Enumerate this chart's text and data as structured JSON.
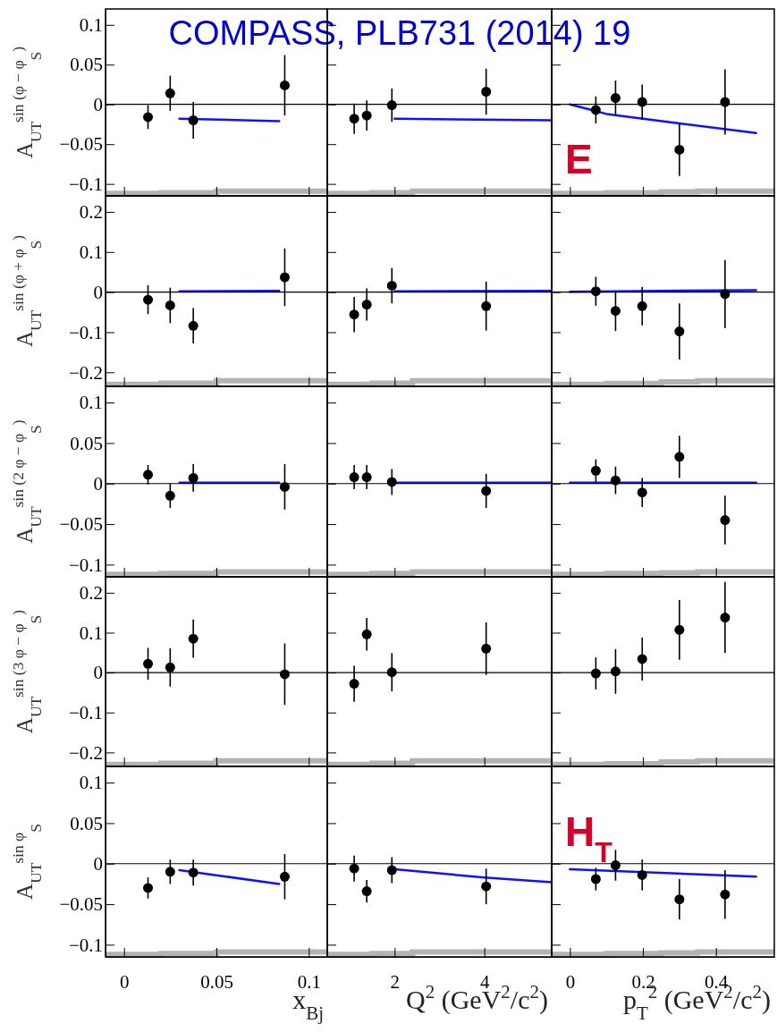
{
  "chart_data": [
    {
      "type": "scatter",
      "title": "COMPASS, PLB731 (2014) 19",
      "ylabel": "A$_{UT}$$^{sin (φ − φ}$$_{S}$$^{)}$",
      "xlim": [
        -0.01,
        0.11
      ],
      "xticks": [
        0,
        0.05,
        0.1
      ],
      "ylim": [
        -0.115,
        0.12
      ],
      "yticks": [
        {
          "value": -0.1,
          "label": "−0.1"
        },
        {
          "value": -0.05,
          "label": "−0.05"
        },
        0,
        0.05,
        0.1
      ],
      "tick_labels": "y",
      "marker": "circle",
      "ref_lines": [
        {
          "axis": "y",
          "value": 0,
          "color": "#000000"
        }
      ],
      "series": [
        {
          "type": "step",
          "color": "#b3b3b3",
          "marker": "none",
          "x": [
            -0.01,
            0.02,
            0.05,
            0.11
          ],
          "values": [
            -0.112,
            -0.111,
            -0.109,
            -0.109
          ]
        },
        {
          "type": "line",
          "color": "#1010ff",
          "marker": "none",
          "x": [
            0.03,
            0.084
          ],
          "values": [
            -0.018,
            -0.021
          ]
        },
        {
          "type": "scatter",
          "color": "#000000",
          "x": [
            0.013,
            0.025,
            0.0375,
            0.087
          ],
          "values": [
            -0.016,
            0.014,
            -0.02,
            0.024
          ],
          "errors": [
            0.015,
            0.022,
            0.023,
            0.038
          ]
        }
      ]
    },
    {
      "type": "scatter",
      "xlim": [
        0.5,
        5.5
      ],
      "xticks": [
        2,
        4
      ],
      "ylim": [
        -0.115,
        0.12
      ],
      "yticks": [
        -0.1,
        -0.05,
        0,
        0.05,
        0.1
      ],
      "tick_labels": false,
      "marker": "circle",
      "ref_lines": [
        {
          "axis": "y",
          "value": 0,
          "color": "#000000"
        }
      ],
      "series": [
        {
          "type": "step",
          "color": "#b3b3b3",
          "marker": "none",
          "x": [
            0.5,
            1.5,
            2.4,
            5.5
          ],
          "values": [
            -0.112,
            -0.111,
            -0.109,
            -0.109
          ]
        },
        {
          "type": "line",
          "color": "#1010ff",
          "marker": "none",
          "x": [
            2,
            5.5
          ],
          "values": [
            -0.018,
            -0.02
          ]
        },
        {
          "type": "scatter",
          "color": "#000000",
          "x": [
            1.1,
            1.38,
            1.94,
            4.04
          ],
          "values": [
            -0.018,
            -0.014,
            -0.001,
            0.016
          ],
          "errors": [
            0.019,
            0.019,
            0.021,
            0.029
          ]
        }
      ]
    },
    {
      "type": "scatter",
      "annotations": [
        "E"
      ],
      "xlim": [
        -0.05,
        0.56
      ],
      "xticks": [
        0,
        0.2,
        0.4
      ],
      "ylim": [
        -0.115,
        0.12
      ],
      "yticks": [
        -0.1,
        -0.05,
        0,
        0.05,
        0.1
      ],
      "tick_labels": false,
      "marker": "circle",
      "ref_lines": [
        {
          "axis": "y",
          "value": 0,
          "color": "#000000"
        }
      ],
      "series": [
        {
          "type": "step",
          "color": "#b3b3b3",
          "marker": "none",
          "x": [
            -0.05,
            0.1,
            0.25,
            0.35,
            0.56
          ],
          "values": [
            -0.112,
            -0.111,
            -0.11,
            -0.109,
            -0.109
          ]
        },
        {
          "type": "line",
          "color": "#1010ff",
          "marker": "none",
          "x": [
            0,
            0.05,
            0.1,
            0.3,
            0.51
          ],
          "values": [
            0,
            -0.006,
            -0.012,
            -0.024,
            -0.036
          ]
        },
        {
          "type": "scatter",
          "color": "#000000",
          "x": [
            0.071,
            0.125,
            0.198,
            0.3,
            0.425
          ],
          "values": [
            -0.007,
            0.008,
            0.003,
            -0.057,
            0.003
          ],
          "errors": [
            0.017,
            0.022,
            0.022,
            0.033,
            0.041
          ]
        }
      ]
    },
    {
      "type": "scatter",
      "ylabel": "A$_{UT}$$^{sin (φ + φ}$$_{S}$$^{)}$",
      "xlim": [
        -0.01,
        0.11
      ],
      "xticks": [
        0,
        0.05,
        0.1
      ],
      "ylim": [
        -0.235,
        0.24
      ],
      "yticks": [
        {
          "value": -0.2,
          "label": "−0.2"
        },
        {
          "value": -0.1,
          "label": "−0.1"
        },
        0,
        0.1,
        0.2
      ],
      "tick_labels": "y",
      "marker": "circle",
      "ref_lines": [
        {
          "axis": "y",
          "value": 0,
          "color": "#000000"
        }
      ],
      "series": [
        {
          "type": "step",
          "color": "#b3b3b3",
          "marker": "none",
          "x": [
            -0.01,
            0.02,
            0.05,
            0.11
          ],
          "values": [
            -0.23,
            -0.227,
            -0.221,
            -0.221
          ]
        },
        {
          "type": "line",
          "color": "#1010ff",
          "marker": "none",
          "x": [
            0.03,
            0.084
          ],
          "values": [
            0.002,
            0.003
          ]
        },
        {
          "type": "scatter",
          "color": "#000000",
          "x": [
            0.013,
            0.025,
            0.0375,
            0.087
          ],
          "values": [
            -0.019,
            -0.033,
            -0.084,
            0.037
          ],
          "errors": [
            0.036,
            0.044,
            0.044,
            0.072
          ]
        }
      ]
    },
    {
      "type": "scatter",
      "xlim": [
        0.5,
        5.5
      ],
      "xticks": [
        2,
        4
      ],
      "ylim": [
        -0.235,
        0.24
      ],
      "yticks": [
        -0.2,
        -0.1,
        0,
        0.1,
        0.2
      ],
      "tick_labels": false,
      "marker": "circle",
      "ref_lines": [
        {
          "axis": "y",
          "value": 0,
          "color": "#000000"
        }
      ],
      "series": [
        {
          "type": "step",
          "color": "#b3b3b3",
          "marker": "none",
          "x": [
            0.5,
            1.5,
            2.4,
            5.5
          ],
          "values": [
            -0.23,
            -0.227,
            -0.221,
            -0.221
          ]
        },
        {
          "type": "line",
          "color": "#1010ff",
          "marker": "none",
          "x": [
            2,
            5.5
          ],
          "values": [
            0.002,
            0.003
          ]
        },
        {
          "type": "scatter",
          "color": "#000000",
          "x": [
            1.1,
            1.38,
            1.94,
            4.04
          ],
          "values": [
            -0.056,
            -0.031,
            0.016,
            -0.035
          ],
          "errors": [
            0.044,
            0.04,
            0.044,
            0.061
          ]
        }
      ]
    },
    {
      "type": "scatter",
      "xlim": [
        -0.05,
        0.56
      ],
      "xticks": [
        0,
        0.2,
        0.4
      ],
      "ylim": [
        -0.235,
        0.24
      ],
      "yticks": [
        -0.2,
        -0.1,
        0,
        0.1,
        0.2
      ],
      "tick_labels": false,
      "marker": "circle",
      "ref_lines": [
        {
          "axis": "y",
          "value": 0,
          "color": "#000000"
        }
      ],
      "series": [
        {
          "type": "step",
          "color": "#b3b3b3",
          "marker": "none",
          "x": [
            -0.05,
            0.1,
            0.25,
            0.35,
            0.56
          ],
          "values": [
            -0.23,
            -0.228,
            -0.224,
            -0.221,
            -0.221
          ]
        },
        {
          "type": "line",
          "color": "#1010ff",
          "marker": "none",
          "x": [
            0,
            0.51
          ],
          "values": [
            0.001,
            0.005
          ]
        },
        {
          "type": "scatter",
          "color": "#000000",
          "x": [
            0.071,
            0.125,
            0.198,
            0.3,
            0.425
          ],
          "values": [
            0.002,
            -0.047,
            -0.035,
            -0.098,
            -0.005
          ],
          "errors": [
            0.036,
            0.05,
            0.048,
            0.07,
            0.085
          ]
        }
      ]
    },
    {
      "type": "scatter",
      "ylabel": "A$_{UT}$$^{sin (2 φ − φ}$$_{S}$$^{)}$",
      "xlim": [
        -0.01,
        0.11
      ],
      "xticks": [
        0,
        0.05,
        0.1
      ],
      "ylim": [
        -0.115,
        0.12
      ],
      "yticks": [
        {
          "value": -0.1,
          "label": "−0.1"
        },
        {
          "value": -0.05,
          "label": "−0.05"
        },
        0,
        0.05,
        0.1
      ],
      "tick_labels": "y",
      "marker": "circle",
      "ref_lines": [
        {
          "axis": "y",
          "value": 0,
          "color": "#000000"
        }
      ],
      "series": [
        {
          "type": "step",
          "color": "#b3b3b3",
          "marker": "none",
          "x": [
            -0.01,
            0.02,
            0.05,
            0.11
          ],
          "values": [
            -0.112,
            -0.111,
            -0.109,
            -0.109
          ]
        },
        {
          "type": "line",
          "color": "#1010ff",
          "marker": "none",
          "x": [
            0.03,
            0.084
          ],
          "values": [
            0.001,
            0.001
          ]
        },
        {
          "type": "scatter",
          "color": "#000000",
          "x": [
            0.013,
            0.025,
            0.0375,
            0.087
          ],
          "values": [
            0.011,
            -0.015,
            0.007,
            -0.004
          ],
          "errors": [
            0.012,
            0.015,
            0.017,
            0.028
          ]
        }
      ]
    },
    {
      "type": "scatter",
      "xlim": [
        0.5,
        5.5
      ],
      "xticks": [
        2,
        4
      ],
      "ylim": [
        -0.115,
        0.12
      ],
      "yticks": [
        -0.1,
        -0.05,
        0,
        0.05,
        0.1
      ],
      "tick_labels": false,
      "marker": "circle",
      "ref_lines": [
        {
          "axis": "y",
          "value": 0,
          "color": "#000000"
        }
      ],
      "series": [
        {
          "type": "step",
          "color": "#b3b3b3",
          "marker": "none",
          "x": [
            0.5,
            1.5,
            2.4,
            5.5
          ],
          "values": [
            -0.112,
            -0.111,
            -0.109,
            -0.109
          ]
        },
        {
          "type": "line",
          "color": "#1010ff",
          "marker": "none",
          "x": [
            2,
            5.5
          ],
          "values": [
            0.001,
            0.001
          ]
        },
        {
          "type": "scatter",
          "color": "#000000",
          "x": [
            1.1,
            1.38,
            1.94,
            4.04
          ],
          "values": [
            0.008,
            0.008,
            0.002,
            -0.009
          ],
          "errors": [
            0.015,
            0.015,
            0.016,
            0.021
          ]
        }
      ]
    },
    {
      "type": "scatter",
      "xlim": [
        -0.05,
        0.56
      ],
      "xticks": [
        0,
        0.2,
        0.4
      ],
      "ylim": [
        -0.115,
        0.12
      ],
      "yticks": [
        -0.1,
        -0.05,
        0,
        0.05,
        0.1
      ],
      "tick_labels": false,
      "marker": "circle",
      "ref_lines": [
        {
          "axis": "y",
          "value": 0,
          "color": "#000000"
        }
      ],
      "series": [
        {
          "type": "step",
          "color": "#b3b3b3",
          "marker": "none",
          "x": [
            -0.05,
            0.1,
            0.25,
            0.35,
            0.56
          ],
          "values": [
            -0.112,
            -0.111,
            -0.11,
            -0.109,
            -0.109
          ]
        },
        {
          "type": "line",
          "color": "#1010ff",
          "marker": "none",
          "x": [
            0,
            0.51
          ],
          "values": [
            0.001,
            0.001
          ]
        },
        {
          "type": "scatter",
          "color": "#000000",
          "x": [
            0.071,
            0.125,
            0.198,
            0.3,
            0.425
          ],
          "values": [
            0.016,
            0.004,
            -0.011,
            0.033,
            -0.045
          ],
          "errors": [
            0.014,
            0.017,
            0.018,
            0.026,
            0.03
          ]
        }
      ]
    },
    {
      "type": "scatter",
      "ylabel": "A$_{UT}$$^{sin (3 φ − φ}$$_{S}$$^{)}$",
      "xlim": [
        -0.01,
        0.11
      ],
      "xticks": [
        0,
        0.05,
        0.1
      ],
      "ylim": [
        -0.235,
        0.24
      ],
      "yticks": [
        {
          "value": -0.2,
          "label": "−0.2"
        },
        {
          "value": -0.1,
          "label": "−0.1"
        },
        0,
        0.1,
        0.2
      ],
      "tick_labels": "y",
      "marker": "circle",
      "ref_lines": [
        {
          "axis": "y",
          "value": 0,
          "color": "#000000"
        }
      ],
      "series": [
        {
          "type": "step",
          "color": "#b3b3b3",
          "marker": "none",
          "x": [
            -0.01,
            0.02,
            0.05,
            0.11
          ],
          "values": [
            -0.23,
            -0.227,
            -0.221,
            -0.221
          ]
        },
        {
          "type": "scatter",
          "color": "#000000",
          "x": [
            0.013,
            0.025,
            0.0375,
            0.087
          ],
          "values": [
            0.022,
            0.013,
            0.085,
            -0.004
          ],
          "errors": [
            0.04,
            0.048,
            0.048,
            0.077
          ]
        }
      ]
    },
    {
      "type": "scatter",
      "xlim": [
        0.5,
        5.5
      ],
      "xticks": [
        2,
        4
      ],
      "ylim": [
        -0.235,
        0.24
      ],
      "yticks": [
        -0.2,
        -0.1,
        0,
        0.1,
        0.2
      ],
      "tick_labels": false,
      "marker": "circle",
      "ref_lines": [
        {
          "axis": "y",
          "value": 0,
          "color": "#000000"
        }
      ],
      "series": [
        {
          "type": "step",
          "color": "#b3b3b3",
          "marker": "none",
          "x": [
            0.5,
            1.5,
            2.4,
            5.5
          ],
          "values": [
            -0.23,
            -0.227,
            -0.221,
            -0.221
          ]
        },
        {
          "type": "scatter",
          "color": "#000000",
          "x": [
            1.1,
            1.38,
            1.94,
            4.04
          ],
          "values": [
            -0.028,
            0.096,
            0.001,
            0.06
          ],
          "errors": [
            0.045,
            0.041,
            0.048,
            0.066
          ]
        }
      ]
    },
    {
      "type": "scatter",
      "xlim": [
        -0.05,
        0.56
      ],
      "xticks": [
        0,
        0.2,
        0.4
      ],
      "ylim": [
        -0.235,
        0.24
      ],
      "yticks": [
        -0.2,
        -0.1,
        0,
        0.1,
        0.2
      ],
      "tick_labels": false,
      "marker": "circle",
      "ref_lines": [
        {
          "axis": "y",
          "value": 0,
          "color": "#000000"
        }
      ],
      "series": [
        {
          "type": "step",
          "color": "#b3b3b3",
          "marker": "none",
          "x": [
            -0.05,
            0.1,
            0.25,
            0.35,
            0.56
          ],
          "values": [
            -0.23,
            -0.228,
            -0.224,
            -0.221,
            -0.221
          ]
        },
        {
          "type": "scatter",
          "color": "#000000",
          "x": [
            0.071,
            0.125,
            0.198,
            0.3,
            0.425
          ],
          "values": [
            -0.002,
            0.003,
            0.034,
            0.107,
            0.138
          ],
          "errors": [
            0.04,
            0.056,
            0.054,
            0.075,
            0.089
          ]
        }
      ]
    },
    {
      "type": "scatter",
      "ylabel": "A$_{UT}$$^{sin φ}$$_{S}$",
      "xlabel": "x$_{Bj}$",
      "xlim": [
        -0.01,
        0.11
      ],
      "xticks": [
        0,
        0.05,
        0.1
      ],
      "ylim": [
        -0.115,
        0.12
      ],
      "yticks": [
        {
          "value": -0.1,
          "label": "−0.1"
        },
        {
          "value": -0.05,
          "label": "−0.05"
        },
        0,
        0.05,
        0.1
      ],
      "marker": "circle",
      "ref_lines": [
        {
          "axis": "y",
          "value": 0,
          "color": "#000000"
        }
      ],
      "series": [
        {
          "type": "step",
          "color": "#b3b3b3",
          "marker": "none",
          "x": [
            -0.01,
            0.02,
            0.05,
            0.11
          ],
          "values": [
            -0.112,
            -0.111,
            -0.109,
            -0.109
          ]
        },
        {
          "type": "line",
          "color": "#1010ff",
          "marker": "none",
          "x": [
            0.03,
            0.084
          ],
          "values": [
            -0.008,
            -0.025
          ]
        },
        {
          "type": "scatter",
          "color": "#000000",
          "x": [
            0.013,
            0.025,
            0.0375,
            0.087
          ],
          "values": [
            -0.03,
            -0.01,
            -0.011,
            -0.016
          ],
          "errors": [
            0.013,
            0.015,
            0.016,
            0.028
          ]
        }
      ]
    },
    {
      "type": "scatter",
      "xlabel": "Q$^{2}$ (GeV$^{2}$/c$^{2}$)",
      "xlim": [
        0.5,
        5.5
      ],
      "xticks": [
        2,
        4
      ],
      "ylim": [
        -0.115,
        0.12
      ],
      "yticks": [
        -0.1,
        -0.05,
        0,
        0.05,
        0.1
      ],
      "tick_labels": "x",
      "marker": "circle",
      "ref_lines": [
        {
          "axis": "y",
          "value": 0,
          "color": "#000000"
        }
      ],
      "series": [
        {
          "type": "step",
          "color": "#b3b3b3",
          "marker": "none",
          "x": [
            0.5,
            1.5,
            2.4,
            5.5
          ],
          "values": [
            -0.112,
            -0.111,
            -0.109,
            -0.109
          ]
        },
        {
          "type": "line",
          "color": "#1010ff",
          "marker": "none",
          "x": [
            2,
            4,
            5.5
          ],
          "values": [
            -0.007,
            -0.017,
            -0.023
          ]
        },
        {
          "type": "scatter",
          "color": "#000000",
          "x": [
            1.1,
            1.38,
            1.94,
            4.04
          ],
          "values": [
            -0.006,
            -0.034,
            -0.008,
            -0.028
          ],
          "errors": [
            0.016,
            0.014,
            0.016,
            0.022
          ]
        }
      ]
    },
    {
      "type": "scatter",
      "xlabel": "p$_{T}$$^{2}$ (GeV$^{2}$/c$^{2}$)",
      "annotations": [
        "H$_{T}$"
      ],
      "xlim": [
        -0.05,
        0.56
      ],
      "xticks": [
        0,
        0.2,
        0.4
      ],
      "ylim": [
        -0.115,
        0.12
      ],
      "yticks": [
        -0.1,
        -0.05,
        0,
        0.05,
        0.1
      ],
      "tick_labels": "x",
      "marker": "circle",
      "ref_lines": [
        {
          "axis": "y",
          "value": 0,
          "color": "#000000"
        }
      ],
      "series": [
        {
          "type": "step",
          "color": "#b3b3b3",
          "marker": "none",
          "x": [
            -0.05,
            0.1,
            0.25,
            0.35,
            0.56
          ],
          "values": [
            -0.112,
            -0.111,
            -0.11,
            -0.109,
            -0.109
          ]
        },
        {
          "type": "line",
          "color": "#1010ff",
          "marker": "none",
          "x": [
            0,
            0.51
          ],
          "values": [
            -0.007,
            -0.016
          ]
        },
        {
          "type": "scatter",
          "color": "#000000",
          "x": [
            0.071,
            0.125,
            0.198,
            0.3,
            0.425
          ],
          "values": [
            -0.019,
            -0.002,
            -0.014,
            -0.044,
            -0.038
          ],
          "errors": [
            0.014,
            0.019,
            0.019,
            0.025,
            0.03
          ]
        }
      ]
    }
  ]
}
